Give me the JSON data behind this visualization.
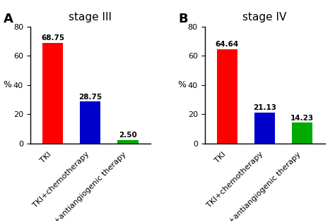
{
  "panel_A": {
    "label": "A",
    "title": "stage III",
    "categories": [
      "TKI",
      "TKI+chemotherapy",
      "TKI+antiangiogenic therapy"
    ],
    "values": [
      68.75,
      28.75,
      2.5
    ],
    "colors": [
      "#FF0000",
      "#0000CC",
      "#00AA00"
    ],
    "ylabel": "%",
    "ylim": [
      0,
      80
    ],
    "yticks": [
      0,
      20,
      40,
      60,
      80
    ]
  },
  "panel_B": {
    "label": "B",
    "title": "stage IV",
    "categories": [
      "TKI",
      "TKI+chemotherapy",
      "TKI+antiangiogenic therapy"
    ],
    "values": [
      64.64,
      21.13,
      14.23
    ],
    "colors": [
      "#FF0000",
      "#0000CC",
      "#00AA00"
    ],
    "ylabel": "%",
    "ylim": [
      0,
      80
    ],
    "yticks": [
      0,
      20,
      40,
      60,
      80
    ]
  },
  "bar_width": 0.55,
  "value_fontsize": 7.5,
  "label_fontsize": 9,
  "title_fontsize": 11,
  "tick_label_fontsize": 8,
  "panel_label_fontsize": 13,
  "background_color": "#FFFFFF"
}
